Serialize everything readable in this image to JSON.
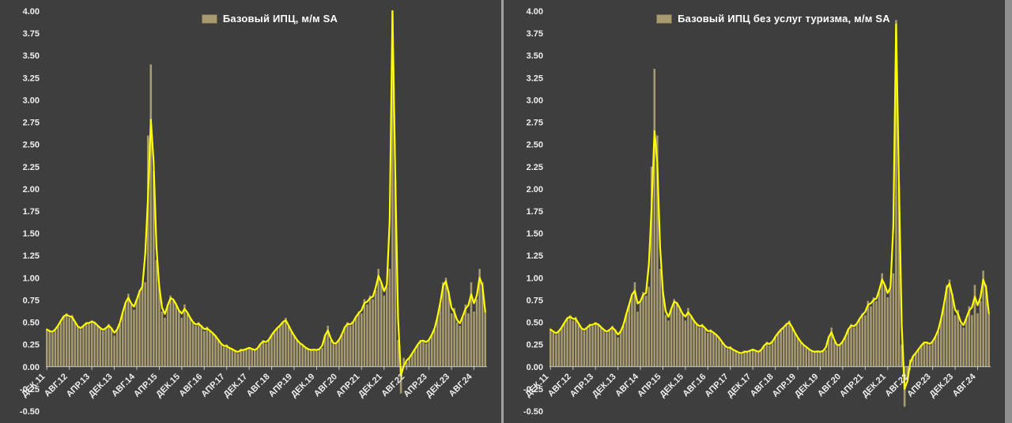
{
  "colors": {
    "background": "#3e3e3e",
    "bar": "#a79b6f",
    "bar_border": "#6e6549",
    "line": "#ffff00",
    "axis": "#c8c8c8",
    "text": "#efefef",
    "divider": "#a0a0a0",
    "window_edge": "#8f8f8f"
  },
  "chart_data": [
    {
      "type": "bar",
      "legend": "Базовый ИПЦ, м/м SA",
      "frequency": "monthly",
      "x_tick_labels": [
        "ДЕК.11",
        "АВГ.12",
        "АПР.13",
        "ДЕК.13",
        "АВГ.14",
        "АПР.15",
        "ДЕК.15",
        "АВГ.16",
        "АПР.17",
        "ДЕК.17",
        "АВГ.18",
        "АПР.19",
        "ДЕК.19",
        "АВГ.20",
        "АПР.21",
        "ДЕК.21",
        "АВГ.22",
        "АПР.23",
        "ДЕК.23",
        "АВГ.24"
      ],
      "x_tick_every": 8,
      "ylim": [
        -0.5,
        4.0
      ],
      "ystep": 0.25,
      "grid": false,
      "legend_position": "top-center",
      "values": [
        0.42,
        0.4,
        0.38,
        0.42,
        0.46,
        0.52,
        0.57,
        0.6,
        0.55,
        0.58,
        0.5,
        0.45,
        0.42,
        0.46,
        0.5,
        0.48,
        0.52,
        0.5,
        0.46,
        0.44,
        0.4,
        0.43,
        0.48,
        0.44,
        0.35,
        0.42,
        0.48,
        0.62,
        0.72,
        0.82,
        0.7,
        0.64,
        0.76,
        0.86,
        0.9,
        0.95,
        2.6,
        3.4,
        2.2,
        1.2,
        0.9,
        0.62,
        0.55,
        0.7,
        0.8,
        0.76,
        0.7,
        0.64,
        0.55,
        0.7,
        0.6,
        0.55,
        0.5,
        0.46,
        0.5,
        0.46,
        0.4,
        0.45,
        0.4,
        0.38,
        0.35,
        0.3,
        0.26,
        0.22,
        0.25,
        0.2,
        0.2,
        0.18,
        0.15,
        0.2,
        0.18,
        0.2,
        0.22,
        0.2,
        0.18,
        0.2,
        0.26,
        0.3,
        0.26,
        0.3,
        0.36,
        0.4,
        0.44,
        0.46,
        0.5,
        0.55,
        0.46,
        0.4,
        0.35,
        0.3,
        0.26,
        0.25,
        0.21,
        0.2,
        0.18,
        0.2,
        0.18,
        0.2,
        0.21,
        0.36,
        0.46,
        0.3,
        0.25,
        0.26,
        0.3,
        0.36,
        0.45,
        0.5,
        0.46,
        0.5,
        0.56,
        0.62,
        0.6,
        0.76,
        0.7,
        0.8,
        0.76,
        0.86,
        1.1,
        0.95,
        0.8,
        0.9,
        1.1,
        4.05,
        2.1,
        0.3,
        -0.3,
        0.1,
        0.05,
        0.1,
        0.15,
        0.2,
        0.25,
        0.3,
        0.3,
        0.26,
        0.3,
        0.36,
        0.42,
        0.56,
        0.7,
        0.95,
        1.0,
        0.85,
        0.6,
        0.66,
        0.5,
        0.46,
        0.56,
        0.7,
        0.6,
        0.95,
        0.62,
        0.76,
        1.1,
        0.95,
        0.62
      ],
      "trend_line": {
        "style": "smoothed",
        "kernel": [
          0.2,
          0.6,
          0.2
        ],
        "overrides": {
          "36": 1.9,
          "37": 2.78,
          "38": 2.3,
          "123": 4.0
        }
      }
    },
    {
      "type": "bar",
      "legend": "Базовый ИПЦ без услуг туризма, м/м SA",
      "frequency": "monthly",
      "x_tick_labels": [
        "ДЕК.11",
        "АВГ.12",
        "АПР.13",
        "ДЕК.13",
        "АВГ.14",
        "АПР.15",
        "ДЕК.15",
        "АВГ.16",
        "АПР.17",
        "ДЕК.17",
        "АВГ.18",
        "АПР.19",
        "ДЕК.19",
        "АВГ.20",
        "АПР.21",
        "ДЕК.21",
        "АВГ.22",
        "АПР.23",
        "ДЕК.23",
        "АВГ.24"
      ],
      "x_tick_every": 8,
      "ylim": [
        -0.5,
        4.0
      ],
      "ystep": 0.25,
      "grid": false,
      "legend_position": "top-center",
      "values": [
        0.42,
        0.4,
        0.36,
        0.4,
        0.44,
        0.5,
        0.55,
        0.58,
        0.52,
        0.56,
        0.48,
        0.43,
        0.4,
        0.44,
        0.48,
        0.46,
        0.5,
        0.48,
        0.44,
        0.42,
        0.38,
        0.41,
        0.46,
        0.42,
        0.33,
        0.4,
        0.46,
        0.6,
        0.7,
        0.8,
        0.95,
        0.62,
        0.74,
        0.84,
        0.8,
        0.9,
        2.25,
        3.35,
        2.6,
        1.1,
        0.85,
        0.58,
        0.52,
        0.66,
        0.76,
        0.72,
        0.66,
        0.6,
        0.52,
        0.66,
        0.56,
        0.52,
        0.48,
        0.44,
        0.48,
        0.44,
        0.38,
        0.42,
        0.38,
        0.36,
        0.33,
        0.28,
        0.24,
        0.2,
        0.23,
        0.18,
        0.18,
        0.16,
        0.14,
        0.18,
        0.16,
        0.18,
        0.2,
        0.18,
        0.16,
        0.18,
        0.24,
        0.28,
        0.24,
        0.28,
        0.34,
        0.38,
        0.42,
        0.44,
        0.48,
        0.52,
        0.44,
        0.38,
        0.33,
        0.28,
        0.24,
        0.23,
        0.19,
        0.18,
        0.16,
        0.18,
        0.16,
        0.18,
        0.19,
        0.34,
        0.44,
        0.28,
        0.23,
        0.24,
        0.28,
        0.34,
        0.43,
        0.48,
        0.44,
        0.48,
        0.54,
        0.6,
        0.58,
        0.74,
        0.68,
        0.78,
        0.74,
        0.84,
        1.05,
        0.92,
        0.78,
        0.88,
        1.05,
        3.9,
        2.05,
        0.25,
        -0.45,
        -0.15,
        0.08,
        0.12,
        0.15,
        0.2,
        0.24,
        0.28,
        0.28,
        0.24,
        0.28,
        0.34,
        0.4,
        0.54,
        0.68,
        0.92,
        0.98,
        0.82,
        0.58,
        0.64,
        0.48,
        0.44,
        0.54,
        0.68,
        0.58,
        0.92,
        0.6,
        0.74,
        1.08,
        0.92,
        0.6
      ],
      "trend_line": {
        "style": "smoothed",
        "kernel": [
          0.2,
          0.6,
          0.2
        ],
        "overrides": {
          "36": 1.8,
          "37": 2.65,
          "38": 2.3,
          "123": 3.85
        }
      }
    }
  ]
}
